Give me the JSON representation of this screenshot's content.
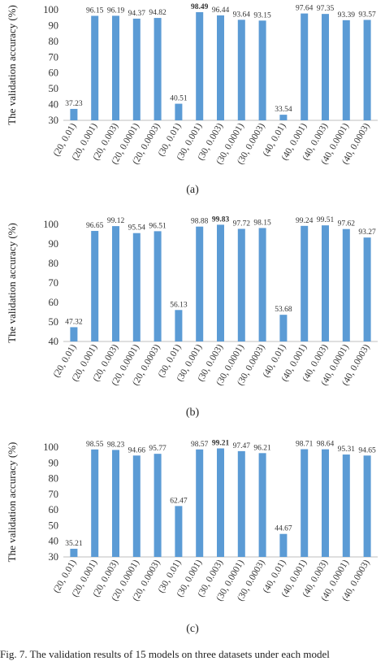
{
  "chart_data": [
    {
      "type": "bar",
      "ylabel": "The validation accuracy (%)",
      "ylim": [
        30,
        100
      ],
      "yticks": [
        30,
        40,
        50,
        60,
        70,
        80,
        90,
        100
      ],
      "categories": [
        "(20, 0.01)",
        "(20, 0.001)",
        "(20, 0.003)",
        "(20, 0.0001)",
        "(20, 0.0003)",
        "(30, 0.01)",
        "(30, 0.001)",
        "(30, 0.003)",
        "(30, 0.0001)",
        "(30, 0.0003)",
        "(40, 0.01)",
        "(40, 0.001)",
        "(40, 0.003)",
        "(40, 0.0001)",
        "(40, 0.0003)"
      ],
      "values": [
        37.23,
        96.15,
        96.19,
        94.37,
        94.82,
        40.51,
        98.49,
        96.44,
        93.64,
        93.15,
        33.54,
        97.64,
        97.35,
        93.39,
        93.57
      ],
      "value_labels": [
        "37.23",
        "96.15",
        "96.19",
        "94.37",
        "94.82",
        "40.51",
        "98.49",
        "96.44",
        "93.64",
        "93.15",
        "33.54",
        "97.64",
        "97.35",
        "93.39",
        "93.57"
      ],
      "bold_index": 6,
      "bar_color": "#5B9BD5",
      "caption": "(a)"
    },
    {
      "type": "bar",
      "ylabel": "The validation accuracy (%)",
      "ylim": [
        40,
        100
      ],
      "yticks": [
        40,
        50,
        60,
        70,
        80,
        90,
        100
      ],
      "categories": [
        "(20, 0.01)",
        "(20, 0.001)",
        "(20, 0.003)",
        "(20, 0.0001)",
        "(20, 0.0003)",
        "(30, 0.01)",
        "(30, 0.001)",
        "(30, 0.003)",
        "(30, 0.0001)",
        "(30, 0.0003)",
        "(40, 0.01)",
        "(40, 0.001)",
        "(40, 0.003)",
        "(40, 0.0001)",
        "(40, 0.0003)"
      ],
      "values": [
        47.32,
        96.65,
        99.12,
        95.54,
        96.51,
        56.13,
        98.88,
        99.83,
        97.72,
        98.15,
        53.68,
        99.24,
        99.51,
        97.62,
        93.27
      ],
      "value_labels": [
        "47.32",
        "96.65",
        "99.12",
        "95.54",
        "96.51",
        "56.13",
        "98.88",
        "99.83",
        "97.72",
        "98.15",
        "53.68",
        "99.24",
        "99.51",
        "97.62",
        "93.27"
      ],
      "bold_index": 7,
      "bar_color": "#5B9BD5",
      "caption": "(b)"
    },
    {
      "type": "bar",
      "ylabel": "The validation accuracy (%)",
      "ylim": [
        30,
        100
      ],
      "yticks": [
        30,
        40,
        50,
        60,
        70,
        80,
        90,
        100
      ],
      "categories": [
        "(20, 0.01)",
        "(20, 0.001)",
        "(20, 0.003)",
        "(20, 0.0001)",
        "(20, 0.0003)",
        "(30, 0.01)",
        "(30, 0.001)",
        "(30, 0.003)",
        "(30, 0.0001)",
        "(30, 0.0003)",
        "(40, 0.01)",
        "(40, 0.001)",
        "(40, 0.003)",
        "(40, 0.0001)",
        "(40, 0.0003)"
      ],
      "values": [
        35.21,
        98.55,
        98.23,
        94.66,
        95.77,
        62.47,
        98.57,
        99.21,
        97.47,
        96.21,
        44.67,
        98.71,
        98.64,
        95.31,
        94.65
      ],
      "value_labels": [
        "35.21",
        "98.55",
        "98.23",
        "94.66",
        "95.77",
        "62.47",
        "98.57",
        "99.21",
        "97.47",
        "96.21",
        "44.67",
        "98.71",
        "98.64",
        "95.31",
        "94.65"
      ],
      "bold_index": 7,
      "bar_color": "#5B9BD5",
      "caption": "(c)"
    }
  ],
  "figure_caption": "Fig. 7. The validation results of 15 models on three datasets under each model"
}
